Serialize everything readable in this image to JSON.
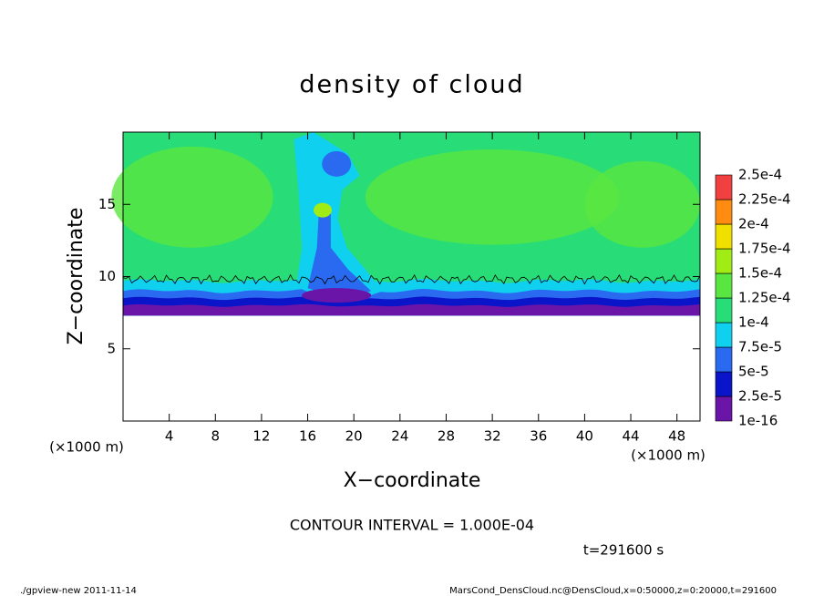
{
  "chart_data": {
    "type": "contour",
    "title": "density of cloud",
    "x_label": "X−coordinate",
    "y_label": "Z−coordinate",
    "x_unit": "(×1000 m)",
    "y_unit": "(×1000 m)",
    "xlim": [
      0,
      50
    ],
    "ylim": [
      0,
      20
    ],
    "xticks": [
      4,
      8,
      12,
      16,
      20,
      24,
      28,
      32,
      36,
      40,
      44,
      48
    ],
    "yticks": [
      5,
      10,
      15
    ],
    "colorbar_ticks": [
      {
        "value": 1e-16,
        "label": "1e-16"
      },
      {
        "value": 2.5e-05,
        "label": "2.5e-5"
      },
      {
        "value": 5e-05,
        "label": "5e-5"
      },
      {
        "value": 7.5e-05,
        "label": "7.5e-5"
      },
      {
        "value": 0.0001,
        "label": "1e-4"
      },
      {
        "value": 0.000125,
        "label": "1.25e-4"
      },
      {
        "value": 0.00015,
        "label": "1.5e-4"
      },
      {
        "value": 0.000175,
        "label": "1.75e-4"
      },
      {
        "value": 0.0002,
        "label": "2e-4"
      },
      {
        "value": 0.000225,
        "label": "2.25e-4"
      },
      {
        "value": 0.00025,
        "label": "2.5e-4"
      }
    ],
    "colors": [
      "#6a14a8",
      "#0a14c8",
      "#2a6af0",
      "#10d0f0",
      "#28dc78",
      "#5ae640",
      "#a0ec14",
      "#f0e000",
      "#ff8c10",
      "#f04040"
    ],
    "contour_interval": "CONTOUR INTERVAL = 1.000E-04",
    "time_label": "t=291600 s",
    "footer_left": "./gpview-new   2011-11-14",
    "footer_right": "MarsCond_DensCloud.nc@DensCloud,x=0:50000,z=0:20000,t=291600"
  }
}
